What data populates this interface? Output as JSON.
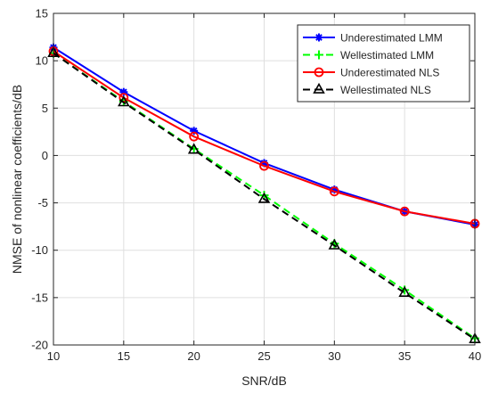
{
  "chart_data": {
    "type": "line",
    "xlabel": "SNR/dB",
    "ylabel": "NMSE of nonlinear coefficients/dB",
    "xlim": [
      10,
      40
    ],
    "ylim": [
      -20,
      15
    ],
    "xticks": [
      10,
      15,
      20,
      25,
      30,
      35,
      40
    ],
    "yticks": [
      -20,
      -15,
      -10,
      -5,
      0,
      5,
      10,
      15
    ],
    "xtick_labels": [
      "10",
      "15",
      "20",
      "25",
      "30",
      "35",
      "40"
    ],
    "ytick_labels": [
      "-20",
      "-15",
      "-10",
      "-5",
      "0",
      "5",
      "10",
      "15"
    ],
    "grid": true,
    "legend_position": "top-right",
    "x": [
      10,
      15,
      20,
      25,
      30,
      35,
      40
    ],
    "series": [
      {
        "name": "Underestimated LMM",
        "values": [
          11.4,
          6.7,
          2.6,
          -0.8,
          -3.6,
          -5.9,
          -7.3
        ],
        "color": "#0000ff",
        "line_style": "solid",
        "marker": "star"
      },
      {
        "name": "Wellestimated LMM",
        "values": [
          10.8,
          5.7,
          0.7,
          -4.2,
          -9.3,
          -14.2,
          -19.3
        ],
        "color": "#00ff00",
        "line_style": "dashed",
        "marker": "plus"
      },
      {
        "name": "Underestimated NLS",
        "values": [
          11.0,
          6.1,
          2.0,
          -1.1,
          -3.8,
          -5.9,
          -7.2
        ],
        "color": "#ff0000",
        "line_style": "solid",
        "marker": "circle"
      },
      {
        "name": "Wellestimated NLS",
        "values": [
          10.8,
          5.6,
          0.6,
          -4.6,
          -9.5,
          -14.5,
          -19.4
        ],
        "color": "#000000",
        "line_style": "dashed",
        "marker": "triangle"
      }
    ]
  }
}
